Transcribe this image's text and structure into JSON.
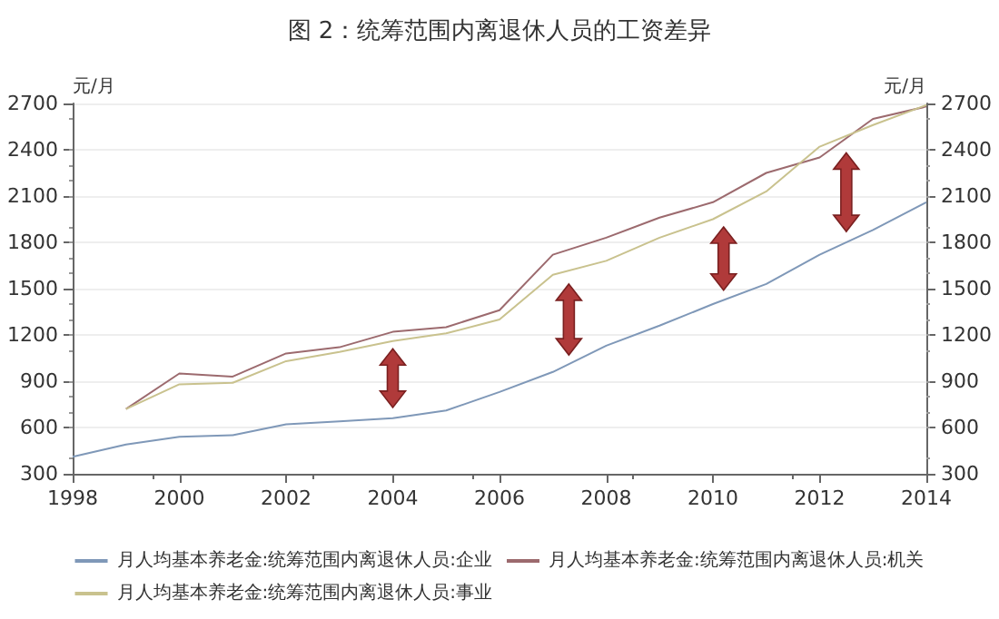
{
  "chart_data": {
    "type": "line",
    "title": "图 2：统筹范围内离退休人员的工资差异",
    "ylabel": "元/月",
    "y2label": "元/月",
    "x": [
      1998,
      1999,
      2000,
      2001,
      2002,
      2003,
      2004,
      2005,
      2006,
      2007,
      2008,
      2009,
      2010,
      2011,
      2012,
      2013,
      2014
    ],
    "series": [
      {
        "name": "月人均基本养老金:统筹范围内离退休人员:企业",
        "color": "#7f98b8",
        "values": [
          410,
          490,
          540,
          550,
          620,
          640,
          660,
          710,
          830,
          960,
          1130,
          1260,
          1400,
          1530,
          1720,
          1880,
          2060
        ]
      },
      {
        "name": "月人均基本养老金:统筹范围内离退休人员:机关",
        "color": "#9c6a6e",
        "values": [
          null,
          720,
          950,
          930,
          1080,
          1120,
          1220,
          1250,
          1360,
          1720,
          1830,
          1960,
          2060,
          2250,
          2350,
          2600,
          2680
        ]
      },
      {
        "name": "月人均基本养老金:统筹范围内离退休人员:事业",
        "color": "#c9c28e",
        "values": [
          null,
          720,
          880,
          890,
          1030,
          1090,
          1160,
          1210,
          1300,
          1590,
          1680,
          1830,
          1950,
          2130,
          2420,
          2560,
          2690
        ]
      }
    ],
    "xlim": [
      1998,
      2014
    ],
    "xticks": [
      1998,
      2000,
      2002,
      2004,
      2006,
      2008,
      2010,
      2012,
      2014
    ],
    "ylim": [
      300,
      2700
    ],
    "yticks": [
      300,
      600,
      900,
      1200,
      1500,
      1800,
      2100,
      2400,
      2700
    ],
    "y2lim": [
      300,
      2700
    ],
    "y2ticks": [
      300,
      600,
      900,
      1200,
      1500,
      1800,
      2100,
      2400,
      2700
    ],
    "grid": "y",
    "legend": "bottom",
    "marker": "none",
    "line_style": "solid"
  }
}
